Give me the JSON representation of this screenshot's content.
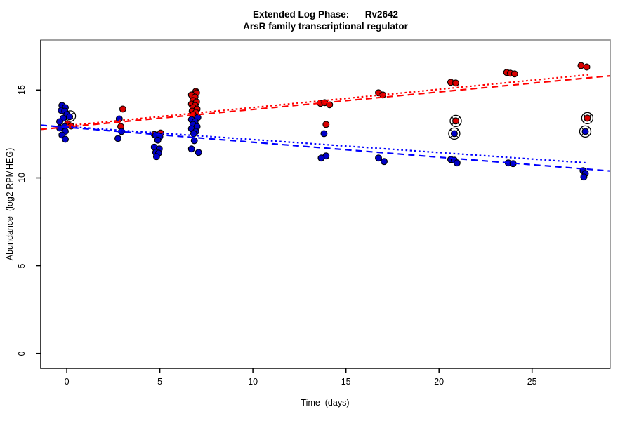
{
  "chart_data": {
    "type": "scatter",
    "title": "Extended Log Phase:      Rv2642",
    "subtitle": "ArsR family transcriptional regulator",
    "xlabel": "Time  (days)",
    "ylabel": "Abundance  (log2 RPMHEG)",
    "xlim": [
      -1.4,
      29.2
    ],
    "ylim": [
      -0.85,
      17.85
    ],
    "xticks": [
      0,
      5,
      10,
      15,
      20,
      25
    ],
    "yticks": [
      0,
      5,
      10,
      15
    ],
    "grid": false,
    "legend": "none",
    "colors": {
      "red_point_fill": "#d90000",
      "blue_point_fill": "#0000c8",
      "point_stroke": "#000000",
      "red_line": "#ff0000",
      "blue_line": "#0000ff",
      "box_light": "#8a8a8a",
      "axis_dark": "#222222"
    },
    "series": [
      {
        "name": "condition-red",
        "marker": "filled-circle",
        "color": "#d90000",
        "points": [
          [
            0.04,
            13.08
          ],
          [
            0.23,
            12.95
          ],
          [
            3.01,
            13.92
          ],
          [
            2.9,
            12.92
          ],
          [
            5.04,
            12.55
          ],
          [
            4.7,
            12.47
          ],
          [
            6.93,
            14.92
          ],
          [
            6.97,
            14.84
          ],
          [
            6.7,
            14.72
          ],
          [
            6.89,
            14.6
          ],
          [
            6.78,
            14.4
          ],
          [
            6.97,
            14.32
          ],
          [
            6.7,
            14.2
          ],
          [
            6.89,
            14.12
          ],
          [
            6.78,
            14.0
          ],
          [
            7.0,
            13.92
          ],
          [
            6.74,
            13.8
          ],
          [
            6.93,
            13.72
          ],
          [
            6.78,
            13.6
          ],
          [
            13.63,
            14.24
          ],
          [
            13.86,
            14.28
          ],
          [
            14.12,
            14.16
          ],
          [
            13.93,
            13.04
          ],
          [
            16.75,
            14.84
          ],
          [
            16.98,
            14.72
          ],
          [
            20.63,
            15.44
          ],
          [
            20.9,
            15.4
          ],
          [
            23.64,
            16.0
          ],
          [
            23.83,
            15.96
          ],
          [
            24.06,
            15.92
          ],
          [
            27.63,
            16.39
          ],
          [
            27.94,
            16.31
          ]
        ]
      },
      {
        "name": "condition-blue",
        "marker": "filled-circle",
        "color": "#0000c8",
        "points": [
          [
            -0.26,
            14.12
          ],
          [
            -0.08,
            14.0
          ],
          [
            -0.3,
            13.84
          ],
          [
            -0.11,
            13.8
          ],
          [
            0.0,
            13.6
          ],
          [
            0.15,
            13.48
          ],
          [
            -0.19,
            13.4
          ],
          [
            -0.38,
            13.2
          ],
          [
            -0.11,
            12.92
          ],
          [
            -0.38,
            12.84
          ],
          [
            -0.08,
            12.65
          ],
          [
            -0.26,
            12.44
          ],
          [
            -0.08,
            12.2
          ],
          [
            2.82,
            13.36
          ],
          [
            2.94,
            12.64
          ],
          [
            2.75,
            12.24
          ],
          [
            4.78,
            12.43
          ],
          [
            5.0,
            12.35
          ],
          [
            4.89,
            12.15
          ],
          [
            4.7,
            11.75
          ],
          [
            4.97,
            11.65
          ],
          [
            4.78,
            11.45
          ],
          [
            4.93,
            11.41
          ],
          [
            4.82,
            11.21
          ],
          [
            7.04,
            13.44
          ],
          [
            6.7,
            13.32
          ],
          [
            6.89,
            13.2
          ],
          [
            6.78,
            13.04
          ],
          [
            7.0,
            12.92
          ],
          [
            6.7,
            12.8
          ],
          [
            6.93,
            12.64
          ],
          [
            6.82,
            12.52
          ],
          [
            6.85,
            12.12
          ],
          [
            6.7,
            11.65
          ],
          [
            7.08,
            11.45
          ],
          [
            13.82,
            12.52
          ],
          [
            13.93,
            11.25
          ],
          [
            13.67,
            11.13
          ],
          [
            16.75,
            11.13
          ],
          [
            17.05,
            10.93
          ],
          [
            20.63,
            11.05
          ],
          [
            20.82,
            11.01
          ],
          [
            20.97,
            10.85
          ],
          [
            23.72,
            10.85
          ],
          [
            23.98,
            10.81
          ],
          [
            27.74,
            10.41
          ],
          [
            27.86,
            10.25
          ],
          [
            27.78,
            10.05
          ]
        ]
      }
    ],
    "circled_outliers": [
      {
        "series": "condition-red",
        "day": 20.9,
        "value": 13.24,
        "color": "#d90000"
      },
      {
        "series": "condition-blue",
        "day": 20.82,
        "value": 12.52,
        "color": "#0000c8"
      },
      {
        "series": "condition-red",
        "day": 27.97,
        "value": 13.4,
        "color": "#d90000"
      },
      {
        "series": "condition-blue",
        "day": 27.86,
        "value": 12.64,
        "color": "#0000c8"
      }
    ],
    "occluded_circle_marker": {
      "day": 0.19,
      "value": 13.52
    },
    "trend_lines": [
      {
        "name": "red-fit-dashed",
        "color": "#ff0000",
        "style": "dashed",
        "from": [
          -1.4,
          12.76
        ],
        "to": [
          29.2,
          15.81
        ]
      },
      {
        "name": "red-fit-dotted",
        "color": "#ff0000",
        "style": "dotted",
        "from": [
          0.0,
          12.97
        ],
        "to": [
          28.0,
          15.87
        ]
      },
      {
        "name": "blue-fit-dashed",
        "color": "#0000ff",
        "style": "dashed",
        "from": [
          -1.4,
          13.0
        ],
        "to": [
          29.2,
          10.39
        ]
      },
      {
        "name": "blue-fit-dotted",
        "color": "#0000ff",
        "style": "dotted",
        "from": [
          0.0,
          12.92
        ],
        "to": [
          28.0,
          10.85
        ]
      }
    ]
  }
}
